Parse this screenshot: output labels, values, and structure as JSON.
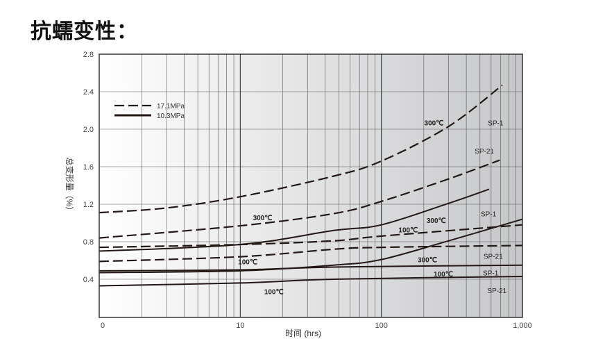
{
  "page_title": "抗蠕变性：",
  "chart_data": {
    "type": "line",
    "xlabel": "时间 (hrs)",
    "ylabel": "总变形量（%）",
    "x_scale": "log",
    "xlim": [
      1,
      1000
    ],
    "ylim": [
      0,
      2.8
    ],
    "x_ticks": [
      {
        "value": 1,
        "label": "0"
      },
      {
        "value": 10,
        "label": "10"
      },
      {
        "value": 100,
        "label": "100"
      },
      {
        "value": 1000,
        "label": "1,000"
      }
    ],
    "y_ticks": [
      {
        "value": 0.4,
        "label": "0.4"
      },
      {
        "value": 0.8,
        "label": "0.8"
      },
      {
        "value": 1.2,
        "label": "1.2"
      },
      {
        "value": 1.6,
        "label": "1.6"
      },
      {
        "value": 2.0,
        "label": "2.0"
      },
      {
        "value": 2.4,
        "label": "2.4"
      },
      {
        "value": 2.8,
        "label": "2.8"
      }
    ],
    "grid": true,
    "legend": {
      "placement": "top-left",
      "entries": [
        {
          "label": "17.1MPa",
          "style": "dashed"
        },
        {
          "label": "10.3MPa",
          "style": "solid"
        }
      ]
    },
    "series": [
      {
        "style": "dashed",
        "x": [
          1,
          3,
          10,
          46,
          100,
          300,
          720
        ],
        "y": [
          1.11,
          1.16,
          1.28,
          1.5,
          1.66,
          2.03,
          2.47
        ]
      },
      {
        "style": "dashed",
        "x": [
          1,
          10,
          46,
          100,
          300,
          690
        ],
        "y": [
          0.84,
          0.97,
          1.1,
          1.23,
          1.47,
          1.67
        ]
      },
      {
        "style": "dashed",
        "x": [
          1,
          10,
          46,
          100,
          1000
        ],
        "y": [
          0.74,
          0.77,
          0.81,
          0.86,
          0.98
        ]
      },
      {
        "style": "dashed",
        "x": [
          1,
          10,
          46,
          100,
          1000
        ],
        "y": [
          0.59,
          0.64,
          0.72,
          0.74,
          0.76
        ]
      },
      {
        "style": "solid",
        "x": [
          1,
          10,
          46,
          100,
          300,
          580
        ],
        "y": [
          0.7,
          0.77,
          0.92,
          0.98,
          1.21,
          1.36
        ]
      },
      {
        "style": "solid",
        "x": [
          1,
          10,
          46,
          100,
          300,
          1000
        ],
        "y": [
          0.47,
          0.49,
          0.55,
          0.61,
          0.81,
          1.04
        ]
      },
      {
        "style": "solid",
        "x": [
          1,
          10,
          46,
          1000
        ],
        "y": [
          0.49,
          0.5,
          0.53,
          0.55
        ]
      },
      {
        "style": "solid",
        "x": [
          1,
          10,
          46,
          1000
        ],
        "y": [
          0.33,
          0.36,
          0.4,
          0.43
        ]
      }
    ],
    "annotations": [
      {
        "text": "300℃",
        "x": 236,
        "y": 2.07,
        "bold": true
      },
      {
        "text": "SP-1",
        "x": 645,
        "y": 2.07
      },
      {
        "text": "SP-21",
        "x": 537,
        "y": 1.77
      },
      {
        "text": "300℃",
        "x": 14.4,
        "y": 1.06,
        "bold": true
      },
      {
        "text": "SP-1",
        "x": 575,
        "y": 1.1
      },
      {
        "text": "300℃",
        "x": 245,
        "y": 1.03,
        "bold": true
      },
      {
        "text": "100℃",
        "x": 155,
        "y": 0.93,
        "bold": true
      },
      {
        "text": "100℃",
        "x": 11.3,
        "y": 0.59,
        "bold": true
      },
      {
        "text": "SP-21",
        "x": 620,
        "y": 0.65
      },
      {
        "text": "300℃",
        "x": 212,
        "y": 0.61,
        "bold": true
      },
      {
        "text": "SP-1",
        "x": 595,
        "y": 0.47
      },
      {
        "text": "100℃",
        "x": 275,
        "y": 0.46,
        "bold": true
      },
      {
        "text": "100℃",
        "x": 17.3,
        "y": 0.27,
        "bold": true
      },
      {
        "text": "SP-21",
        "x": 660,
        "y": 0.28
      }
    ]
  }
}
